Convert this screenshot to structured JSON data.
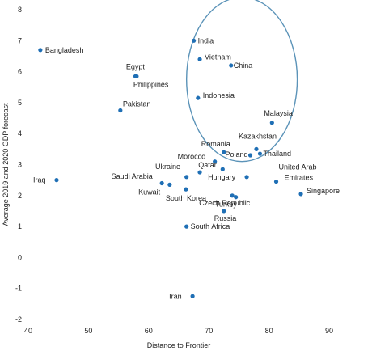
{
  "chart_data": {
    "type": "scatter",
    "title": "",
    "xlabel": "Distance to Frontier",
    "ylabel": "Average 2019 and 2020 GDP forecast",
    "xlim": [
      40,
      90
    ],
    "ylim": [
      -2,
      8
    ],
    "xticks": [
      "40",
      "50",
      "60",
      "70",
      "80",
      "90"
    ],
    "yticks": [
      "-2",
      "-1",
      "0",
      "1",
      "2",
      "3",
      "4",
      "5",
      "6",
      "7",
      "8"
    ],
    "grid": false,
    "colors": {
      "point": "#1f6fb5",
      "circle": "#5b93b8"
    },
    "points": [
      {
        "label": "Bangladesh",
        "x": 42,
        "y": 6.7
      },
      {
        "label": "Egypt",
        "x": 57.8,
        "y": 5.85
      },
      {
        "label": "Philippines",
        "x": 58,
        "y": 5.85
      },
      {
        "label": "Pakistan",
        "x": 55.3,
        "y": 4.75
      },
      {
        "label": "India",
        "x": 67.5,
        "y": 7.0
      },
      {
        "label": "Vietnam",
        "x": 68.5,
        "y": 6.4
      },
      {
        "label": "China",
        "x": 73.7,
        "y": 6.2
      },
      {
        "label": "Indonesia",
        "x": 68.2,
        "y": 5.15
      },
      {
        "label": "Malaysia",
        "x": 80.5,
        "y": 4.35
      },
      {
        "label": "Romania",
        "x": 72.5,
        "y": 3.4
      },
      {
        "label": "Kazakhstan",
        "x": 77.9,
        "y": 3.5
      },
      {
        "label": "Poland",
        "x": 76.9,
        "y": 3.3
      },
      {
        "label": "Thailand",
        "x": 78.5,
        "y": 3.35
      },
      {
        "label": "Morocco",
        "x": 71.0,
        "y": 3.1
      },
      {
        "label": "Qatar",
        "x": 72.3,
        "y": 2.85
      },
      {
        "label": "Ukraine",
        "x": 68.5,
        "y": 2.75
      },
      {
        "label": "Saudi Arabia",
        "x": 66.3,
        "y": 2.6
      },
      {
        "label": "Hungary",
        "x": 76.3,
        "y": 2.6
      },
      {
        "label": "United Arab Emirates",
        "x": 81.2,
        "y": 2.45
      },
      {
        "label": "Iraq",
        "x": 44.7,
        "y": 2.5
      },
      {
        "label": "Kuwait",
        "x": 62.2,
        "y": 2.4
      },
      {
        "label": "Kuwait",
        "x": 63.5,
        "y": 2.35
      },
      {
        "label": "Czech Republic",
        "x": 73.9,
        "y": 2.0
      },
      {
        "label": "South Korea",
        "x": 66.2,
        "y": 2.2
      },
      {
        "label": "Turkey",
        "x": 74.5,
        "y": 1.95
      },
      {
        "label": "Singapore",
        "x": 85.3,
        "y": 2.05
      },
      {
        "label": "Russia",
        "x": 72.5,
        "y": 1.5
      },
      {
        "label": "South Africa",
        "x": 66.3,
        "y": 1.0
      },
      {
        "label": "Iran",
        "x": 67.3,
        "y": -1.25
      }
    ],
    "annotations": [
      {
        "type": "circle",
        "cx": 75.5,
        "cy": 5.75,
        "rx_units": 9.2,
        "ry_units": 2.65
      }
    ]
  }
}
